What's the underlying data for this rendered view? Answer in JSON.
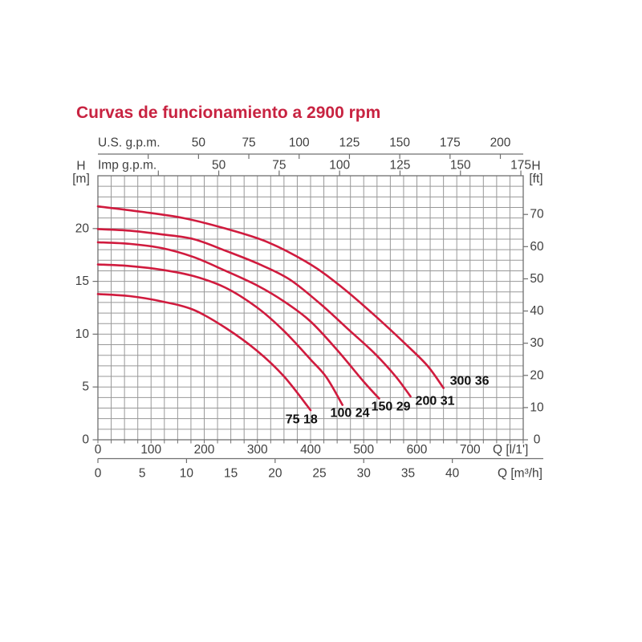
{
  "title": "Curvas de funcionamiento a 2900 rpm",
  "colors": {
    "title": "#c82341",
    "curve": "#d01b3e",
    "grid": "#989898",
    "border": "#6f6f6f",
    "axis": "#6f6f6f",
    "text": "#3f3f3f",
    "curve_label": "#111111"
  },
  "chart_data": {
    "type": "line",
    "title": "Curvas de funcionamiento a 2900 rpm",
    "x_unit": "l/1'",
    "x_range": [
      0,
      800
    ],
    "x_grid_step": 25,
    "y_unit": "m",
    "y_range": [
      0,
      25
    ],
    "y_grid_step": 1,
    "grid": true,
    "axes": {
      "us_gpm": {
        "label": "U.S. g.p.m.",
        "lmin_per_unit": 3.785,
        "tick_labels": [
          50,
          75,
          100,
          125,
          150,
          175,
          200
        ],
        "tick_marks": [
          25,
          50,
          75,
          100,
          125,
          150,
          175,
          200
        ]
      },
      "imp_gpm": {
        "label": "Imp g.p.m.",
        "lmin_per_unit": 4.546,
        "tick_labels": [
          50,
          75,
          100,
          125,
          150,
          175
        ],
        "tick_marks": [
          25,
          50,
          75,
          100,
          125,
          150,
          175
        ]
      },
      "h_m": {
        "label_top": "H",
        "label_unit": "[m]",
        "tick_labels": [
          0,
          5,
          10,
          15,
          20
        ]
      },
      "h_ft": {
        "label_top": "H",
        "label_unit": "[ft]",
        "m_per_unit": 0.3048,
        "tick_labels": [
          0,
          10,
          20,
          30,
          40,
          50,
          60,
          70
        ]
      },
      "q_lmin": {
        "label": "Q [l/1']",
        "tick_labels": [
          0,
          100,
          200,
          300,
          400,
          500,
          600,
          700
        ]
      },
      "q_m3h": {
        "label": "Q [m³/h]",
        "lmin_per_unit": 16.6667,
        "tick_labels": [
          0,
          5,
          10,
          15,
          20,
          25,
          30,
          35,
          40
        ],
        "tick_marks": [
          0,
          10,
          20,
          30,
          40
        ]
      }
    },
    "series": [
      {
        "name": "75 18",
        "label_at": [
          383,
          1.9
        ],
        "points": [
          [
            0,
            13.8
          ],
          [
            60,
            13.6
          ],
          [
            120,
            13.1
          ],
          [
            180,
            12.3
          ],
          [
            240,
            10.6
          ],
          [
            300,
            8.4
          ],
          [
            350,
            6.0
          ],
          [
            400,
            2.8
          ]
        ]
      },
      {
        "name": "100 24",
        "label_at": [
          474,
          2.5
        ],
        "points": [
          [
            0,
            16.6
          ],
          [
            60,
            16.45
          ],
          [
            120,
            16.1
          ],
          [
            180,
            15.5
          ],
          [
            240,
            14.4
          ],
          [
            300,
            12.5
          ],
          [
            350,
            10.3
          ],
          [
            400,
            7.6
          ],
          [
            430,
            5.9
          ],
          [
            460,
            3.3
          ]
        ]
      },
      {
        "name": "150 29",
        "label_at": [
          551,
          3.1
        ],
        "points": [
          [
            0,
            18.7
          ],
          [
            60,
            18.55
          ],
          [
            120,
            18.15
          ],
          [
            180,
            17.3
          ],
          [
            240,
            16.0
          ],
          [
            300,
            14.6
          ],
          [
            350,
            13.1
          ],
          [
            400,
            11.2
          ],
          [
            450,
            8.5
          ],
          [
            500,
            5.5
          ],
          [
            529,
            3.9
          ]
        ]
      },
      {
        "name": "200 31",
        "label_at": [
          634,
          3.65
        ],
        "points": [
          [
            0,
            19.95
          ],
          [
            60,
            19.8
          ],
          [
            120,
            19.45
          ],
          [
            180,
            19.0
          ],
          [
            240,
            17.9
          ],
          [
            300,
            16.7
          ],
          [
            360,
            15.2
          ],
          [
            420,
            12.8
          ],
          [
            470,
            10.5
          ],
          [
            520,
            8.2
          ],
          [
            560,
            6.0
          ],
          [
            588,
            4.1
          ]
        ]
      },
      {
        "name": "300 36",
        "label_at": [
          699,
          5.55
        ],
        "points": [
          [
            0,
            22.1
          ],
          [
            80,
            21.6
          ],
          [
            160,
            21.0
          ],
          [
            240,
            20.0
          ],
          [
            320,
            18.7
          ],
          [
            400,
            16.6
          ],
          [
            460,
            14.4
          ],
          [
            520,
            11.8
          ],
          [
            580,
            9.0
          ],
          [
            620,
            7.0
          ],
          [
            650,
            4.9
          ]
        ]
      }
    ]
  }
}
